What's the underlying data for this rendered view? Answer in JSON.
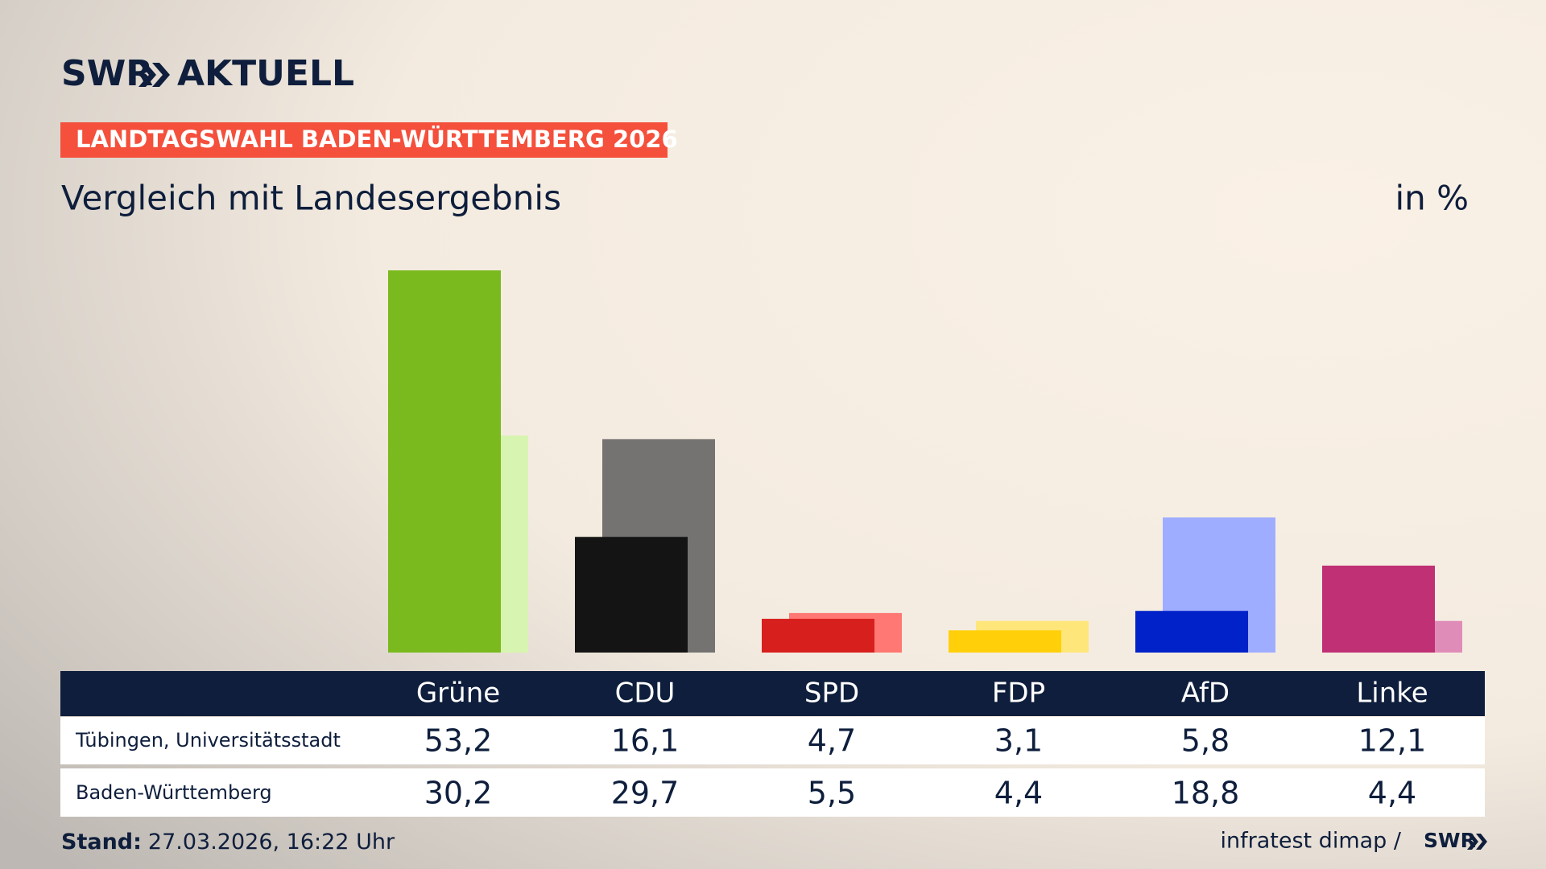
{
  "chart_data": {
    "type": "bar",
    "brand": "SWR",
    "brand_name": "AKTUELL",
    "kicker": "LANDTAGSWAHL BADEN-WÜRTTEMBERG 2026",
    "title": "Vergleich mit Landesergebnis",
    "unit_label": "in %",
    "categories": [
      "Grüne",
      "CDU",
      "SPD",
      "FDP",
      "AfD",
      "Linke"
    ],
    "series": [
      {
        "name": "Tübingen, Universitätsstadt",
        "colors": [
          "#7aba1e",
          "#141414",
          "#d7201e",
          "#ffd00a",
          "#0022c8",
          "#c03074"
        ],
        "values": [
          53.2,
          16.1,
          4.7,
          3.1,
          5.8,
          12.1
        ],
        "value_labels": [
          "53,2",
          "16,1",
          "4,7",
          "3,1",
          "5,8",
          "12,1"
        ]
      },
      {
        "name": "Baden-Württemberg",
        "colors": [
          "#d7f5b0",
          "#757371",
          "#ff7873",
          "#ffe67a",
          "#9eadff",
          "#e08cb9"
        ],
        "values": [
          30.2,
          29.7,
          5.5,
          4.4,
          18.8,
          4.4
        ],
        "value_labels": [
          "30,2",
          "29,7",
          "5,5",
          "4,4",
          "18,8",
          "4,4"
        ]
      }
    ],
    "footnote_label": "Stand:",
    "footnote": "27.03.2026, 16:22 Uhr",
    "source": "infratest dimap /",
    "source_brand": "SWR"
  }
}
